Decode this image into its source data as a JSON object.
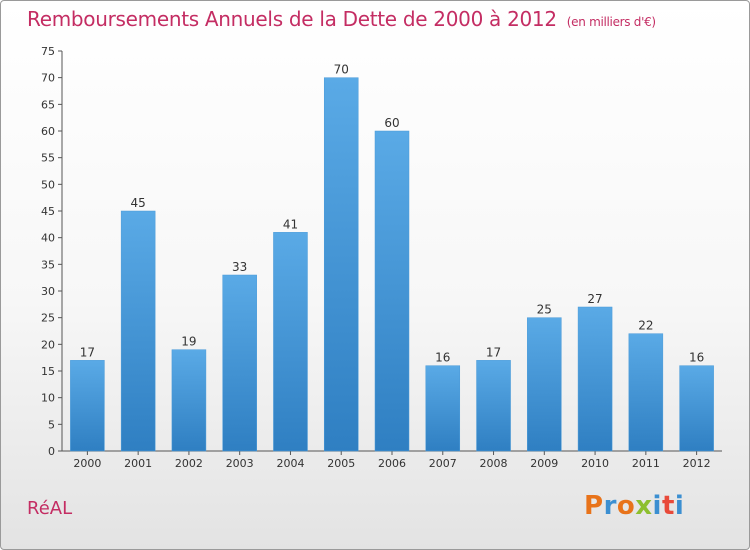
{
  "header": {
    "title": "Remboursements Annuels de la Dette de 2000 à 2012",
    "subtitle": "(en milliers d'€)"
  },
  "footer": {
    "commune": "RéAL",
    "logo": "Proxiti"
  },
  "colors": {
    "title": "#c42d63",
    "bar_light": "#5aaae6",
    "bar_dark": "#2f7fc2",
    "logo": [
      "#e8731a",
      "#3b8fd1",
      "#e8731a",
      "#8dbf2e",
      "#3b8fd1",
      "#e84a3a",
      "#3b8fd1"
    ]
  },
  "chart_data": {
    "type": "bar",
    "title": "Remboursements Annuels de la Dette de 2000 à 2012",
    "subtitle": "(en milliers d'€)",
    "xlabel": "",
    "ylabel": "",
    "categories": [
      "2000",
      "2001",
      "2002",
      "2003",
      "2004",
      "2005",
      "2006",
      "2007",
      "2008",
      "2009",
      "2010",
      "2011",
      "2012"
    ],
    "values": [
      17,
      45,
      19,
      33,
      41,
      70,
      60,
      16,
      17,
      25,
      27,
      22,
      16
    ],
    "ylim": [
      0,
      75
    ],
    "ytick_step": 5,
    "grid": false,
    "data_labels": true
  }
}
